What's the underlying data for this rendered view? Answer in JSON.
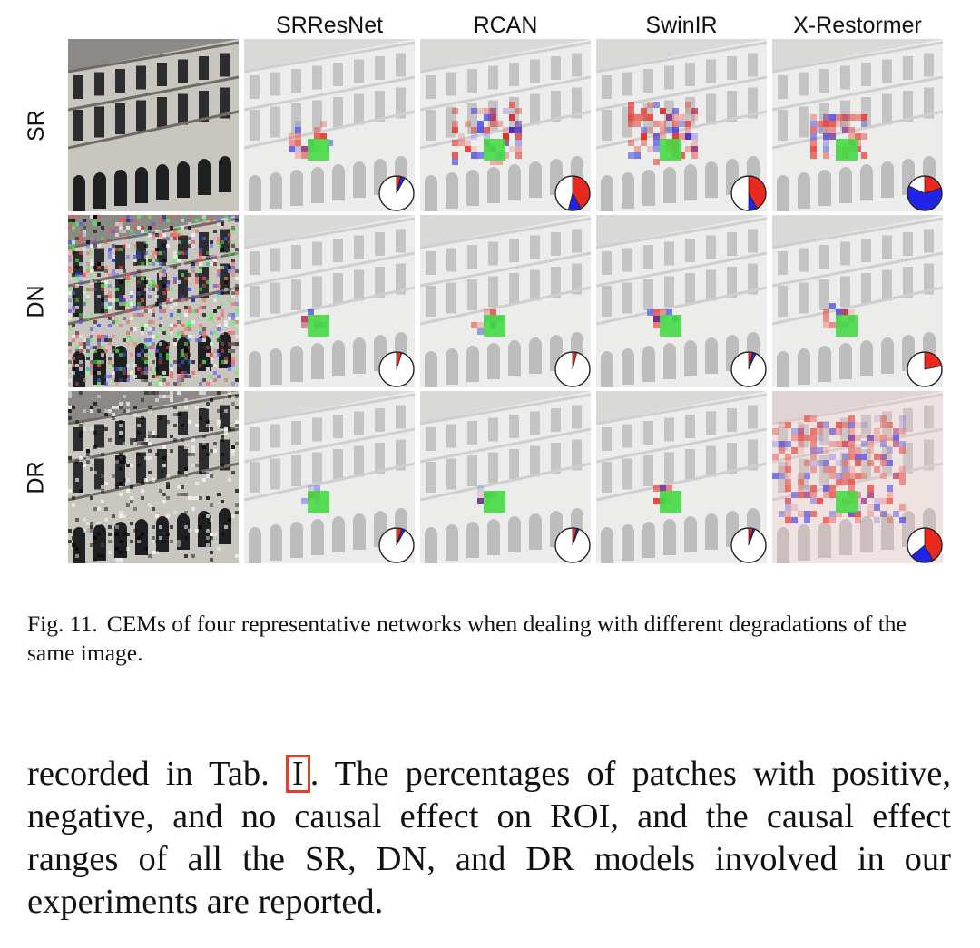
{
  "figure": {
    "columns": [
      "SRResNet",
      "RCAN",
      "SwinIR",
      "X-Restormer"
    ],
    "rows": [
      {
        "label": "SR",
        "pies": [
          {
            "positive": 0.04,
            "negative": 0.04
          },
          {
            "positive": 0.42,
            "negative": 0.12
          },
          {
            "positive": 0.42,
            "negative": 0.08
          },
          {
            "positive": 0.2,
            "negative": 0.62
          }
        ]
      },
      {
        "label": "DN",
        "pies": [
          {
            "positive": 0.05,
            "negative": 0.0
          },
          {
            "positive": 0.04,
            "negative": 0.0
          },
          {
            "positive": 0.04,
            "negative": 0.03
          },
          {
            "positive": 0.22,
            "negative": 0.0
          }
        ]
      },
      {
        "label": "DR",
        "pies": [
          {
            "positive": 0.05,
            "negative": 0.03
          },
          {
            "positive": 0.04,
            "negative": 0.02
          },
          {
            "positive": 0.04,
            "negative": 0.02
          },
          {
            "positive": 0.42,
            "negative": 0.22
          }
        ]
      }
    ],
    "colors": {
      "positive": "#e8291f",
      "negative": "#1f24e8",
      "neutral": "#ffffff",
      "roi": "#46dc46"
    }
  },
  "caption": {
    "label": "Fig. 11.",
    "text": "CEMs of four representative networks when dealing with different degradations of the same image."
  },
  "paragraph": {
    "before": "recorded in Tab. ",
    "ref": "I",
    "after": ". The percentages of patches with positive, negative, and no causal effect on ROI, and the causal effect ranges of all the SR, DN, and DR models involved in our experiments are reported."
  }
}
